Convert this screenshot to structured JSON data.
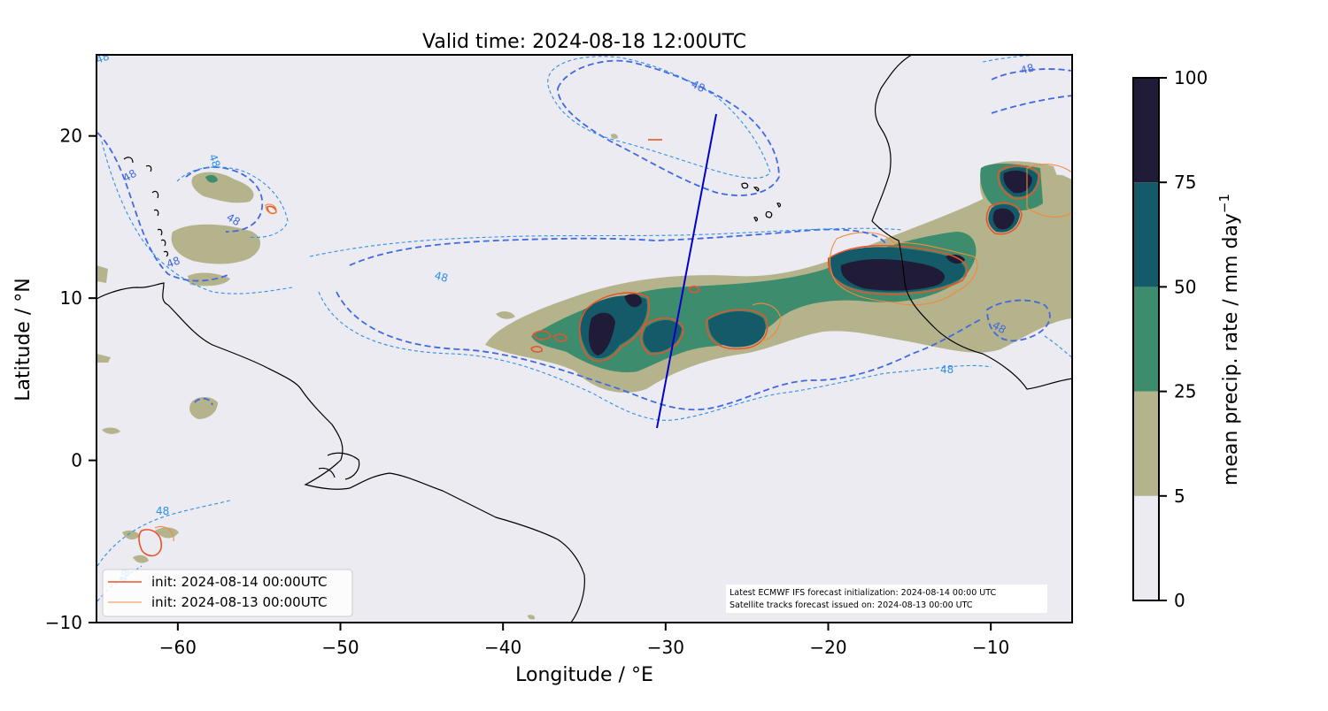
{
  "title": "Valid time: 2024-08-18 12:00UTC",
  "x_axis": {
    "label": "Longitude / °E",
    "range": [
      -65,
      -5
    ],
    "ticks": [
      {
        "value": -60,
        "label": "−60"
      },
      {
        "value": -50,
        "label": "−50"
      },
      {
        "value": -40,
        "label": "−40"
      },
      {
        "value": -30,
        "label": "−30"
      },
      {
        "value": -20,
        "label": "−20"
      },
      {
        "value": -10,
        "label": "−10"
      }
    ]
  },
  "y_axis": {
    "label": "Latitude / °N",
    "range": [
      -10,
      25
    ],
    "ticks": [
      {
        "value": 20,
        "label": "20"
      },
      {
        "value": 10,
        "label": "10"
      },
      {
        "value": 0,
        "label": "0"
      },
      {
        "value": -10,
        "label": "−10"
      }
    ]
  },
  "colorbar": {
    "label": "mean precip. rate / mm day",
    "label_superscript": "−1",
    "levels": [
      0,
      5,
      25,
      50,
      75,
      100
    ],
    "tick_labels": [
      "0",
      "5",
      "25",
      "50",
      "75",
      "100"
    ],
    "colors": [
      "#ecebf1",
      "#b5b38c",
      "#3e8c6e",
      "#155a68",
      "#201c38"
    ]
  },
  "legend": {
    "position": "lower-left",
    "entries": [
      {
        "label": "init: 2024-08-14 00:00UTC",
        "color": "#e8542a"
      },
      {
        "label": "init: 2024-08-13 00:00UTC",
        "color": "#f08a3c"
      }
    ]
  },
  "info_box": {
    "line1": "Latest ECMWF IFS forecast initialization: 2024-08-14 00:00 UTC",
    "line2": "Satellite tracks forecast issued on: 2024-08-13 00:00 UTC"
  },
  "contour_label": "48",
  "satellite_track": {
    "color": "#0000cc",
    "start": {
      "lon": -30.6,
      "lat": 2.0
    },
    "end": {
      "lon": -26.9,
      "lat": 21.4
    }
  },
  "colors": {
    "background": "#ecebf1",
    "contour_dashed_dark": "#4169e1",
    "contour_dashed_light": "#2e90e8"
  }
}
